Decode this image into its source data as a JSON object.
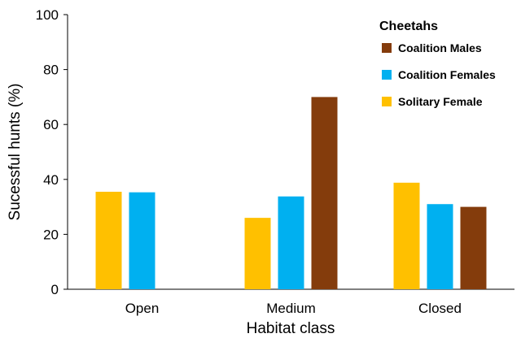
{
  "chart_data": {
    "type": "bar",
    "title": "",
    "xlabel": "Habitat class",
    "ylabel": "Sucessful hunts (%)",
    "ylim": [
      0,
      100
    ],
    "yticks": [
      0,
      20,
      40,
      60,
      80,
      100
    ],
    "categories": [
      "Open",
      "Medium",
      "Closed"
    ],
    "legend": {
      "title": "Cheetahs",
      "placement": "top-right"
    },
    "legend_order": [
      "Coalition Males",
      "Coalition Females",
      "Solitary Female"
    ],
    "series": [
      {
        "name": "Solitary Female",
        "color": "#FFC000",
        "values": [
          35.5,
          26,
          38.8
        ]
      },
      {
        "name": "Coalition Females",
        "color": "#00B0F0",
        "values": [
          35.3,
          33.8,
          31
        ]
      },
      {
        "name": "Coalition Males",
        "color": "#843C0C",
        "values": [
          null,
          70,
          30
        ]
      }
    ],
    "grid": false
  }
}
